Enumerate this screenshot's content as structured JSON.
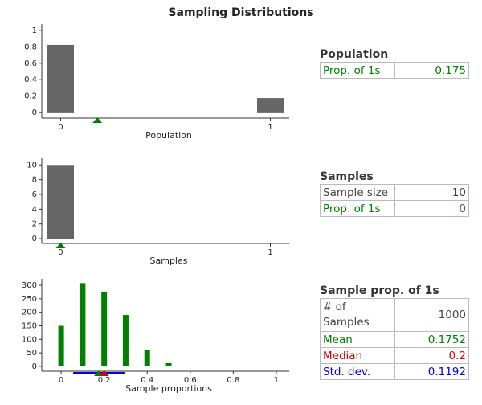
{
  "title": "Sampling Distributions",
  "chart_data": [
    {
      "type": "bar",
      "x_label": "Population",
      "x": [
        0,
        1
      ],
      "values": [
        0.825,
        0.175
      ],
      "color": "#666666",
      "xlim": [
        -0.09,
        1.09
      ],
      "xticks": [
        0,
        1
      ],
      "ylim": [
        -0.07,
        1.08
      ],
      "yticks": [
        0,
        0.2,
        0.4,
        0.6,
        0.8,
        1
      ]
    },
    {
      "type": "bar",
      "x_label": "Samples",
      "x": [
        0,
        1
      ],
      "values": [
        10,
        0
      ],
      "color": "#666666",
      "xlim": [
        -0.09,
        1.09
      ],
      "xticks": [
        0,
        1
      ],
      "ylim": [
        -0.65,
        10.9
      ],
      "yticks": [
        0,
        2,
        4,
        6,
        8,
        10
      ]
    },
    {
      "type": "bar",
      "x_label": "Sample proportions",
      "x": [
        0,
        0.1,
        0.2,
        0.3,
        0.4,
        0.5
      ],
      "values": [
        150,
        308,
        275,
        190,
        60,
        12
      ],
      "color": "#008000",
      "xlim": [
        -0.09,
        1.06
      ],
      "xticks": [
        0,
        0.2,
        0.4,
        0.6,
        0.8,
        1
      ],
      "ylim": [
        -18,
        324
      ],
      "yticks": [
        0,
        50,
        100,
        150,
        200,
        250,
        300
      ]
    }
  ],
  "panels": [
    {
      "title": "Population",
      "rows": [
        {
          "label": "Prop. of 1s",
          "value": 0.175,
          "color": "#008000"
        }
      ]
    },
    {
      "title": "Samples",
      "rows": [
        {
          "label": "Sample size",
          "value": 10,
          "color": "#444444"
        },
        {
          "label": "Prop. of 1s",
          "value": 0,
          "color": "#008000"
        }
      ]
    },
    {
      "title": "Sample prop. of 1s",
      "rows": [
        {
          "label": "# of Samples",
          "value": 1000,
          "color": "#444444"
        },
        {
          "label": "Mean",
          "value": 0.1752,
          "color": "#008000"
        },
        {
          "label": "Median",
          "value": 0.2,
          "color": "#e00000"
        },
        {
          "label": "Std. dev.",
          "value": 0.1192,
          "color": "#0000e0"
        }
      ]
    }
  ]
}
